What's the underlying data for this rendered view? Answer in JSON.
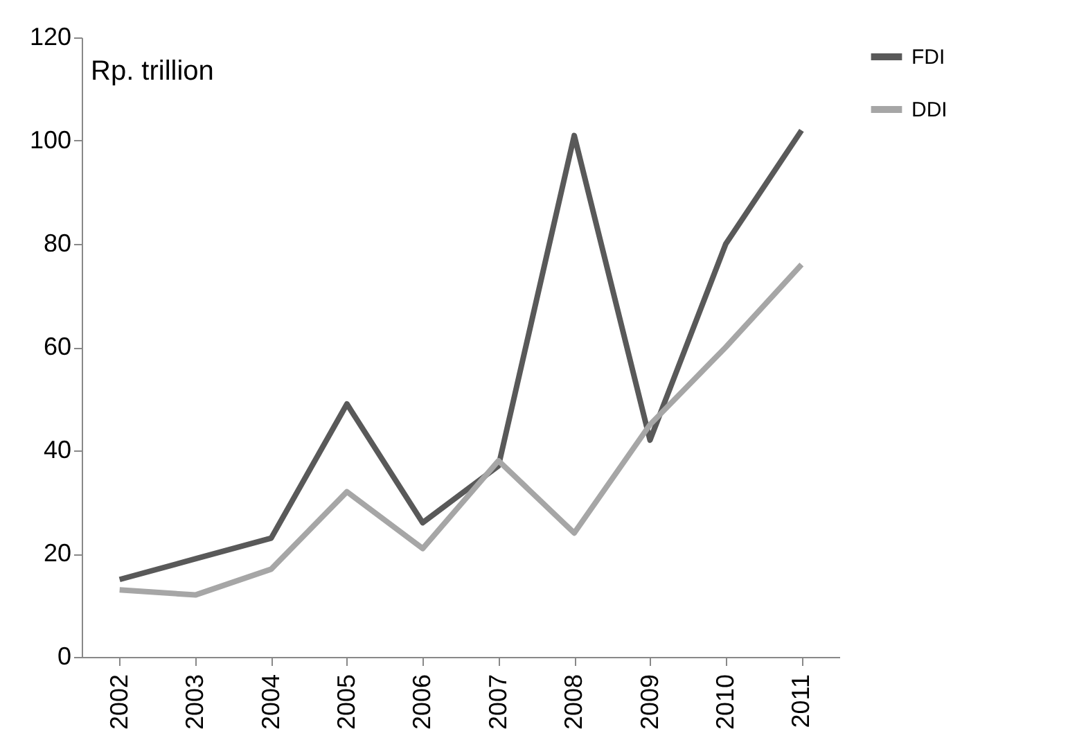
{
  "chart_data": {
    "type": "line",
    "ylabel": "Rp. trillion",
    "categories": [
      "2002",
      "2003",
      "2004",
      "2005",
      "2006",
      "2007",
      "2008",
      "2009",
      "2010",
      "2011"
    ],
    "series": [
      {
        "name": "FDI",
        "color": "#595959",
        "values": [
          15,
          19,
          23,
          49,
          26,
          37,
          101,
          42,
          80,
          102
        ]
      },
      {
        "name": "DDI",
        "color": "#a6a6a6",
        "values": [
          13,
          12,
          17,
          32,
          21,
          38,
          24,
          45,
          60,
          76
        ]
      }
    ],
    "ylim": [
      0,
      120
    ],
    "yticks": [
      0,
      20,
      40,
      60,
      80,
      100,
      120
    ],
    "grid": false,
    "legend": "right",
    "marker": "none",
    "line_style": "solid"
  }
}
